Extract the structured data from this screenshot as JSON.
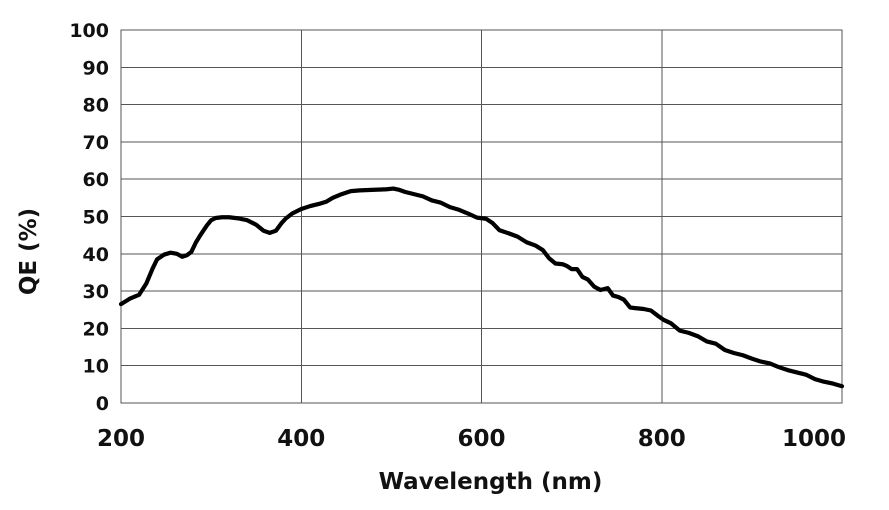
{
  "chart_data": {
    "type": "line",
    "title": "",
    "xlabel": "Wavelength (nm)",
    "ylabel": "QE (%)",
    "xlim": [
      200,
      1000
    ],
    "ylim": [
      0,
      100
    ],
    "x_ticks": [
      200,
      400,
      600,
      800,
      1000
    ],
    "x_tick_labels": [
      "200",
      "400",
      "600",
      "800",
      "1000"
    ],
    "y_ticks": [
      0,
      10,
      20,
      30,
      40,
      50,
      60,
      70,
      80,
      90,
      100
    ],
    "y_tick_labels": [
      "0",
      "10",
      "20",
      "30",
      "40",
      "50",
      "60",
      "70",
      "80",
      "90",
      "100"
    ],
    "grid": true,
    "legend": "none",
    "line_color": "#000000",
    "grid_color": "#555555",
    "series": [
      {
        "x": [
          200,
          210,
          220,
          228,
          235,
          240,
          248,
          255,
          262,
          268,
          273,
          278,
          283,
          288,
          295,
          300,
          305,
          312,
          320,
          330,
          340,
          350,
          358,
          365,
          372,
          378,
          383,
          390,
          400,
          410,
          420,
          428,
          435,
          445,
          455,
          465,
          475,
          485,
          495,
          502,
          508,
          515,
          525,
          535,
          545,
          555,
          565,
          575,
          585,
          595,
          605,
          612,
          620,
          630,
          640,
          650,
          660,
          668,
          675,
          682,
          690,
          695,
          700,
          706,
          712,
          718,
          725,
          732,
          740,
          746,
          752,
          758,
          765,
          772,
          780,
          788,
          795,
          802,
          810,
          820,
          830,
          840,
          850,
          860,
          870,
          880,
          890,
          900,
          910,
          920,
          930,
          940,
          950,
          960,
          970,
          980,
          990,
          1000
        ],
        "y": [
          26.5,
          28,
          29,
          32,
          36,
          38.5,
          39.8,
          40.3,
          40,
          39.2,
          39.6,
          40.5,
          43,
          45,
          47.5,
          49,
          49.6,
          49.8,
          49.8,
          49.5,
          49,
          47.8,
          46.2,
          45.6,
          46.2,
          48.2,
          49.5,
          50.8,
          52,
          52.8,
          53.4,
          54,
          55,
          56,
          56.8,
          57,
          57.1,
          57.2,
          57.3,
          57.5,
          57.2,
          56.6,
          56,
          55.4,
          54.3,
          53.7,
          52.5,
          51.8,
          50.8,
          49.7,
          49.4,
          48.3,
          46.3,
          45.5,
          44.6,
          43.1,
          42.2,
          41,
          38.8,
          37.4,
          37.2,
          36.7,
          35.9,
          35.9,
          33.8,
          33.1,
          31.2,
          30.3,
          30.8,
          28.8,
          28.4,
          27.7,
          25.6,
          25.4,
          25.2,
          24.8,
          23.5,
          22.3,
          21.4,
          19.4,
          18.8,
          17.9,
          16.5,
          15.9,
          14.2,
          13.4,
          12.8,
          11.9,
          11.1,
          10.6,
          9.6,
          8.8,
          8.2,
          7.6,
          6.4,
          5.7,
          5.2,
          4.5
        ]
      }
    ]
  }
}
